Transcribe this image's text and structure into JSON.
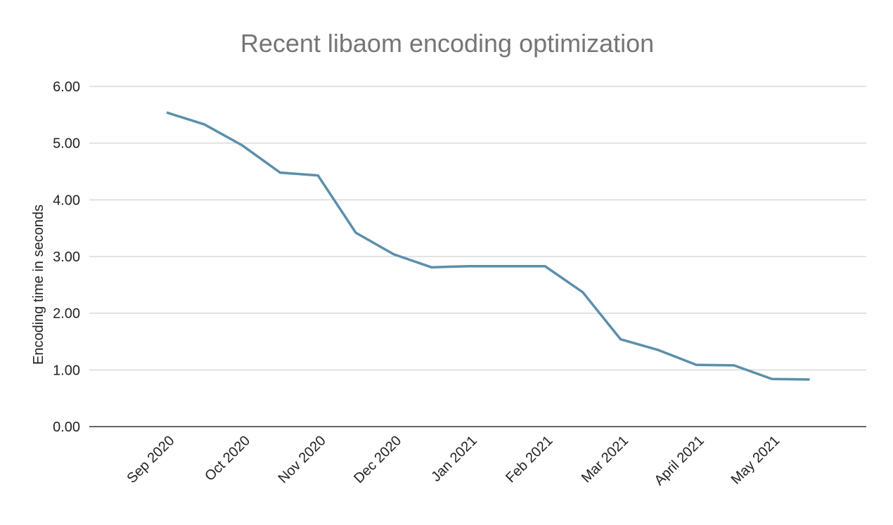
{
  "chart_data": {
    "type": "line",
    "title": "Recent libaom encoding optimization",
    "xlabel": "",
    "ylabel": "Encoding time in seconds",
    "ylim": [
      0,
      6
    ],
    "yticks": [
      "0.00",
      "1.00",
      "2.00",
      "3.00",
      "4.00",
      "5.00",
      "6.00"
    ],
    "grid": true,
    "legend": "none",
    "categories": [
      "Sep 2020",
      "",
      "Oct 2020",
      "",
      "Nov 2020",
      "",
      "Dec 2020",
      "",
      "Jan 2021",
      "",
      "Feb 2021",
      "",
      "Mar 2021",
      "",
      "April 2021",
      "",
      "May 2021",
      ""
    ],
    "series": [
      {
        "values": [
          5.54,
          5.33,
          4.96,
          4.48,
          4.43,
          3.42,
          3.04,
          2.81,
          2.83,
          2.83,
          2.83,
          2.37,
          1.54,
          1.35,
          1.09,
          1.08,
          0.84,
          0.83
        ]
      }
    ],
    "colors": {
      "line": "#5b8fab",
      "grid": "#c8c8c8",
      "axis": "#333333",
      "title": "#757575"
    }
  }
}
